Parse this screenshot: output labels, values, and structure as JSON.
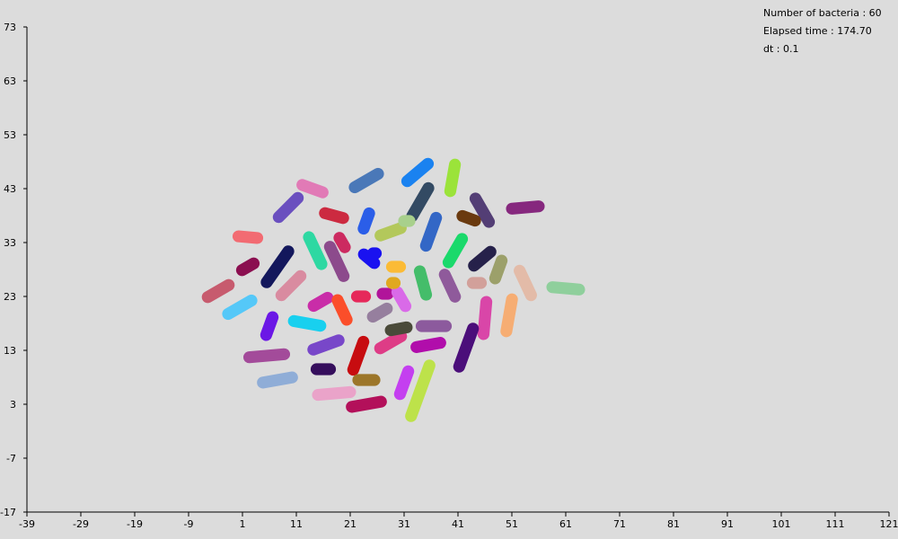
{
  "info": {
    "bacteria_label": "Number of bacteria : 60",
    "time_label": "Elapsed time : 174.70",
    "dt_label": "dt : 0.1"
  },
  "axes": {
    "x_ticks": [
      "-39",
      "-29",
      "-19",
      "-9",
      "1",
      "11",
      "21",
      "31",
      "41",
      "51",
      "61",
      "71",
      "81",
      "91",
      "101",
      "111",
      "121"
    ],
    "y_ticks": [
      "73",
      "63",
      "53",
      "43",
      "33",
      "23",
      "13",
      "3",
      "-7",
      "-17"
    ],
    "x_range": [
      -39,
      121
    ],
    "y_range": [
      -17,
      73
    ]
  },
  "bacteria": [
    {
      "x": 14.0,
      "y": 43.0,
      "angle": -20,
      "length": 4.0,
      "color": "#e17ab6"
    },
    {
      "x": 9.5,
      "y": 39.5,
      "angle": 45,
      "length": 5.0,
      "color": "#6a4fbf"
    },
    {
      "x": 24.0,
      "y": 44.5,
      "angle": 30,
      "length": 5.0,
      "color": "#4a78b8"
    },
    {
      "x": 33.5,
      "y": 46.0,
      "angle": 40,
      "length": 5.0,
      "color": "#1a82f0"
    },
    {
      "x": 40.0,
      "y": 45.0,
      "angle": 80,
      "length": 5.0,
      "color": "#9be33a"
    },
    {
      "x": 34.0,
      "y": 40.5,
      "angle": 60,
      "length": 6.0,
      "color": "#334a63"
    },
    {
      "x": 45.5,
      "y": 39.0,
      "angle": -60,
      "length": 5.0,
      "color": "#533e75"
    },
    {
      "x": 53.5,
      "y": 39.5,
      "angle": 5,
      "length": 5.0,
      "color": "#86287e"
    },
    {
      "x": 43.0,
      "y": 37.5,
      "angle": -20,
      "length": 2.5,
      "color": "#6a3a0f"
    },
    {
      "x": 18.0,
      "y": 38.0,
      "angle": -15,
      "length": 3.5,
      "color": "#cc2a40"
    },
    {
      "x": 24.0,
      "y": 37.0,
      "angle": 70,
      "length": 3.0,
      "color": "#2b5ee8"
    },
    {
      "x": 28.5,
      "y": 35.0,
      "angle": 20,
      "length": 4.0,
      "color": "#b3c85b"
    },
    {
      "x": 36.0,
      "y": 35.0,
      "angle": 70,
      "length": 5.5,
      "color": "#3367c6"
    },
    {
      "x": 40.5,
      "y": 31.5,
      "angle": 60,
      "length": 5.0,
      "color": "#1ad96b"
    },
    {
      "x": 45.5,
      "y": 30.0,
      "angle": 40,
      "length": 4.0,
      "color": "#26214a"
    },
    {
      "x": 14.5,
      "y": 31.5,
      "angle": -65,
      "length": 5.5,
      "color": "#2ed8a2"
    },
    {
      "x": 18.5,
      "y": 29.5,
      "angle": -65,
      "length": 6.0,
      "color": "#8c4a8c"
    },
    {
      "x": 2.0,
      "y": 34.0,
      "angle": -5,
      "length": 3.5,
      "color": "#f26b72"
    },
    {
      "x": 2.0,
      "y": 28.5,
      "angle": 30,
      "length": 2.5,
      "color": "#8b0f50"
    },
    {
      "x": 7.5,
      "y": 28.5,
      "angle": 55,
      "length": 7.0,
      "color": "#13175c"
    },
    {
      "x": 10.0,
      "y": 25.0,
      "angle": 45,
      "length": 5.0,
      "color": "#d98ba0"
    },
    {
      "x": -3.5,
      "y": 24.0,
      "angle": 30,
      "length": 4.5,
      "color": "#c75b6e"
    },
    {
      "x": 0.5,
      "y": 21.0,
      "angle": 30,
      "length": 5.0,
      "color": "#55c8f8"
    },
    {
      "x": 24.5,
      "y": 30.0,
      "angle": -40,
      "length": 2.5,
      "color": "#1a12f0"
    },
    {
      "x": 29.5,
      "y": 28.5,
      "angle": 0,
      "length": 1.5,
      "color": "#fbbb36"
    },
    {
      "x": 34.5,
      "y": 25.5,
      "angle": -75,
      "length": 4.5,
      "color": "#44bd6a"
    },
    {
      "x": 39.5,
      "y": 25.0,
      "angle": -65,
      "length": 4.5,
      "color": "#8f5a9b"
    },
    {
      "x": 44.5,
      "y": 25.5,
      "angle": 0,
      "length": 1.5,
      "color": "#d2a09a"
    },
    {
      "x": 48.5,
      "y": 28.0,
      "angle": 70,
      "length": 3.5,
      "color": "#9ca06a"
    },
    {
      "x": 53.5,
      "y": 25.5,
      "angle": -65,
      "length": 5.0,
      "color": "#e3bba8"
    },
    {
      "x": 61.0,
      "y": 24.5,
      "angle": -5,
      "length": 5.0,
      "color": "#8fcf9c"
    },
    {
      "x": 15.5,
      "y": 22.0,
      "angle": 30,
      "length": 3.0,
      "color": "#c92da8"
    },
    {
      "x": 19.5,
      "y": 20.5,
      "angle": -65,
      "length": 4.0,
      "color": "#fb4e2a"
    },
    {
      "x": 23.0,
      "y": 23.0,
      "angle": 0,
      "length": 1.5,
      "color": "#e6285a"
    },
    {
      "x": 27.5,
      "y": 23.5,
      "angle": 0,
      "length": 1.0,
      "color": "#b1149a"
    },
    {
      "x": 30.5,
      "y": 22.5,
      "angle": -60,
      "length": 3.0,
      "color": "#d96ae8"
    },
    {
      "x": 26.5,
      "y": 20.0,
      "angle": 30,
      "length": 3.0,
      "color": "#967f9e"
    },
    {
      "x": 46.0,
      "y": 19.0,
      "angle": 85,
      "length": 6.0,
      "color": "#d946a8"
    },
    {
      "x": 50.5,
      "y": 19.5,
      "angle": 80,
      "length": 6.0,
      "color": "#f6ad73"
    },
    {
      "x": 6.0,
      "y": 17.5,
      "angle": 70,
      "length": 3.5,
      "color": "#6b17e6"
    },
    {
      "x": 13.0,
      "y": 18.0,
      "angle": -10,
      "length": 5.0,
      "color": "#18d0ef"
    },
    {
      "x": 16.5,
      "y": 14.0,
      "angle": 20,
      "length": 5.0,
      "color": "#7847c9"
    },
    {
      "x": 22.5,
      "y": 12.0,
      "angle": 70,
      "length": 5.5,
      "color": "#c70c10"
    },
    {
      "x": 28.5,
      "y": 14.5,
      "angle": 30,
      "length": 4.5,
      "color": "#de3c86"
    },
    {
      "x": 30.0,
      "y": 17.0,
      "angle": 10,
      "length": 3.0,
      "color": "#4a4a39"
    },
    {
      "x": 36.5,
      "y": 17.5,
      "angle": 0,
      "length": 4.5,
      "color": "#8c5a9d"
    },
    {
      "x": 35.5,
      "y": 14.0,
      "angle": 10,
      "length": 4.5,
      "color": "#b10dab"
    },
    {
      "x": 42.5,
      "y": 13.5,
      "angle": 70,
      "length": 7.5,
      "color": "#4b0e7a"
    },
    {
      "x": 5.5,
      "y": 12.0,
      "angle": 5,
      "length": 6.5,
      "color": "#a34b9a"
    },
    {
      "x": 7.5,
      "y": 7.5,
      "angle": 10,
      "length": 5.5,
      "color": "#8fadd7"
    },
    {
      "x": 16.0,
      "y": 9.5,
      "angle": 0,
      "length": 2.5,
      "color": "#350e5c"
    },
    {
      "x": 18.0,
      "y": 5.0,
      "angle": 5,
      "length": 6.0,
      "color": "#eaa3c9"
    },
    {
      "x": 24.0,
      "y": 7.5,
      "angle": 0,
      "length": 3.0,
      "color": "#9c762a"
    },
    {
      "x": 24.0,
      "y": 3.0,
      "angle": 10,
      "length": 5.5,
      "color": "#b3105a"
    },
    {
      "x": 31.0,
      "y": 7.0,
      "angle": 70,
      "length": 4.5,
      "color": "#c43ff0"
    },
    {
      "x": 34.0,
      "y": 5.5,
      "angle": 70,
      "length": 10.0,
      "color": "#bde24a"
    },
    {
      "x": 19.5,
      "y": 33.0,
      "angle": -60,
      "length": 2.0,
      "color": "#cc2a60"
    },
    {
      "x": 31.5,
      "y": 37.0,
      "angle": 0,
      "length": 1.0,
      "color": "#a8d08c"
    },
    {
      "x": 29.0,
      "y": 25.5,
      "angle": 0,
      "length": 0.5,
      "color": "#e0a820"
    },
    {
      "x": 25.5,
      "y": 31.0,
      "angle": 0,
      "length": 0.5,
      "color": "#1a12f0"
    }
  ]
}
